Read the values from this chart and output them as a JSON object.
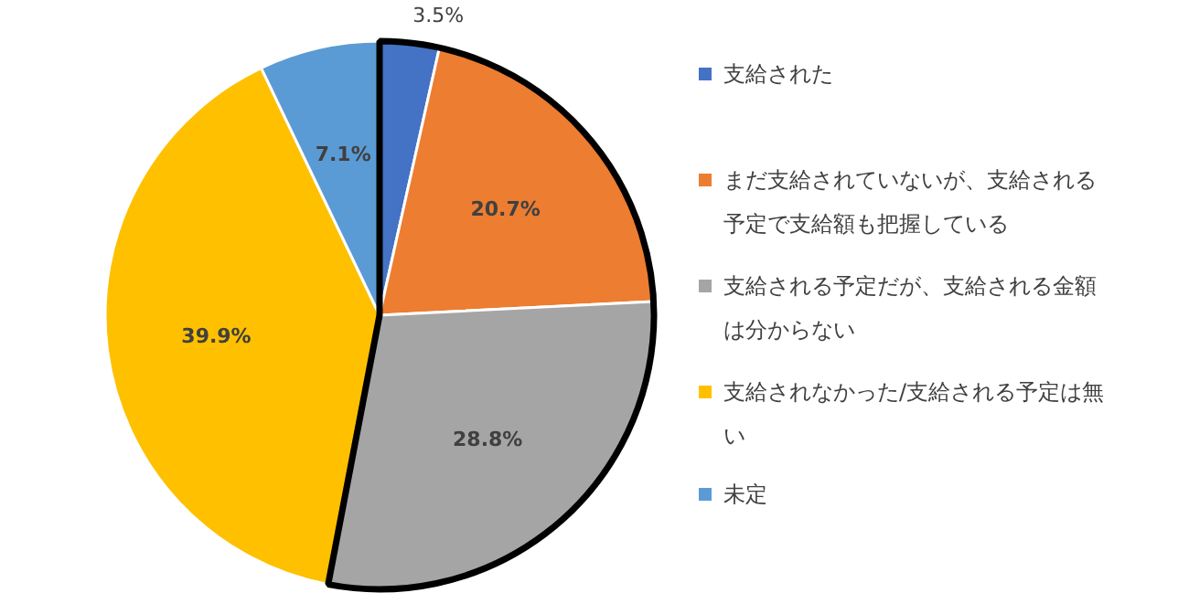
{
  "chart_data": {
    "type": "pie",
    "categories": [
      "支給された",
      "まだ支給されていないが、支給される予定で支給額も把握している",
      "支給される予定だが、支給される金額は分からない",
      "支給されなかった/支給される予定は無い",
      "未定"
    ],
    "values": [
      3.5,
      20.7,
      28.8,
      39.9,
      7.1
    ],
    "value_labels": [
      "3.5%",
      "20.7%",
      "28.8%",
      "39.9%",
      "7.1%"
    ],
    "colors": [
      "#4472c4",
      "#ed7d31",
      "#a5a5a5",
      "#ffc000",
      "#5b9bd5"
    ],
    "legend": "right"
  }
}
